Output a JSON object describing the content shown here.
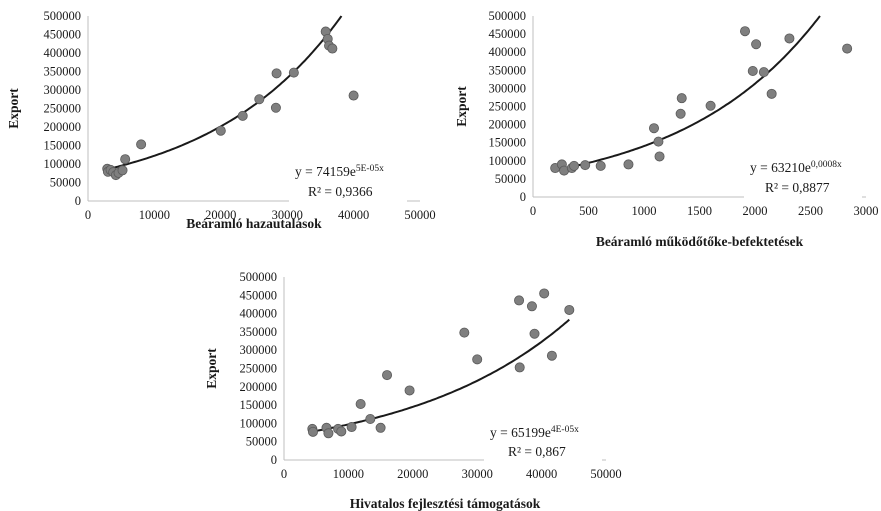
{
  "chart_data": [
    {
      "type": "scatter",
      "xlabel": "Beáramló hazautalások",
      "ylabel": "Export",
      "xlim": [
        0,
        50000
      ],
      "ylim": [
        0,
        500000
      ],
      "xticks": [
        0,
        10000,
        20000,
        30000,
        40000,
        50000
      ],
      "yticks": [
        0,
        50000,
        100000,
        150000,
        200000,
        250000,
        300000,
        350000,
        400000,
        450000,
        500000
      ],
      "x_tick_labels": [
        "0",
        "10000",
        "20000",
        "30000",
        "40000",
        "50000"
      ],
      "y_tick_labels": [
        "0",
        "50000",
        "100000",
        "150000",
        "200000",
        "250000",
        "300000",
        "350000",
        "400000",
        "450000",
        "500000"
      ],
      "points": [
        {
          "x": 2900,
          "y": 87000
        },
        {
          "x": 3000,
          "y": 79000
        },
        {
          "x": 3400,
          "y": 84000
        },
        {
          "x": 3800,
          "y": 78000
        },
        {
          "x": 4200,
          "y": 70000
        },
        {
          "x": 4600,
          "y": 76000
        },
        {
          "x": 5200,
          "y": 83000
        },
        {
          "x": 5600,
          "y": 113000
        },
        {
          "x": 8000,
          "y": 153000
        },
        {
          "x": 20000,
          "y": 190000
        },
        {
          "x": 23300,
          "y": 230000
        },
        {
          "x": 25800,
          "y": 275000
        },
        {
          "x": 28300,
          "y": 252000
        },
        {
          "x": 28400,
          "y": 345000
        },
        {
          "x": 31000,
          "y": 347000
        },
        {
          "x": 35800,
          "y": 458000
        },
        {
          "x": 36100,
          "y": 438000
        },
        {
          "x": 36300,
          "y": 420000
        },
        {
          "x": 36800,
          "y": 412000
        },
        {
          "x": 40000,
          "y": 285000
        }
      ],
      "trendline": {
        "type": "exponential",
        "a": 74159,
        "b": 5e-05,
        "x_from": 3000,
        "x_to": 40000
      },
      "equation": {
        "main": "y = 74159e",
        "exponent": "5E-05x",
        "r2": "R² = 0,9366"
      }
    },
    {
      "type": "scatter",
      "xlabel": "Beáramló működőtőke-befektetések",
      "ylabel": "Export",
      "xlim": [
        0,
        3000
      ],
      "ylim": [
        0,
        500000
      ],
      "xticks": [
        0,
        500,
        1000,
        1500,
        2000,
        2500,
        3000
      ],
      "yticks": [
        0,
        50000,
        100000,
        150000,
        200000,
        250000,
        300000,
        350000,
        400000,
        450000,
        500000
      ],
      "x_tick_labels": [
        "0",
        "500",
        "1000",
        "1500",
        "2000",
        "2500",
        "3000"
      ],
      "y_tick_labels": [
        "0",
        "50000",
        "100000",
        "150000",
        "200000",
        "250000",
        "300000",
        "350000",
        "400000",
        "450000",
        "500000"
      ],
      "points": [
        {
          "x": 200,
          "y": 80000
        },
        {
          "x": 260,
          "y": 90000
        },
        {
          "x": 280,
          "y": 73000
        },
        {
          "x": 350,
          "y": 80000
        },
        {
          "x": 370,
          "y": 86000
        },
        {
          "x": 470,
          "y": 88000
        },
        {
          "x": 610,
          "y": 86000
        },
        {
          "x": 860,
          "y": 90000
        },
        {
          "x": 1090,
          "y": 190000
        },
        {
          "x": 1130,
          "y": 153000
        },
        {
          "x": 1140,
          "y": 112000
        },
        {
          "x": 1330,
          "y": 230000
        },
        {
          "x": 1340,
          "y": 273000
        },
        {
          "x": 1600,
          "y": 252000
        },
        {
          "x": 1910,
          "y": 458000
        },
        {
          "x": 1980,
          "y": 348000
        },
        {
          "x": 2010,
          "y": 422000
        },
        {
          "x": 2080,
          "y": 345000
        },
        {
          "x": 2150,
          "y": 285000
        },
        {
          "x": 2310,
          "y": 438000
        },
        {
          "x": 2830,
          "y": 410000
        }
      ],
      "trendline": {
        "type": "exponential",
        "a": 63210,
        "b": 0.0008,
        "x_from": 200,
        "x_to": 2600
      },
      "equation": {
        "main": "y = 63210e",
        "exponent": "0,0008x",
        "r2": "R² = 0,8877"
      }
    },
    {
      "type": "scatter",
      "xlabel": "Hivatalos fejlesztési támogatások",
      "ylabel": "Export",
      "xlim": [
        0,
        50000
      ],
      "ylim": [
        0,
        500000
      ],
      "xticks": [
        0,
        10000,
        20000,
        30000,
        40000,
        50000
      ],
      "yticks": [
        0,
        50000,
        100000,
        150000,
        200000,
        250000,
        300000,
        350000,
        400000,
        450000,
        500000
      ],
      "x_tick_labels": [
        "0",
        "10000",
        "20000",
        "30000",
        "40000",
        "50000"
      ],
      "y_tick_labels": [
        "0",
        "50000",
        "100000",
        "150000",
        "200000",
        "250000",
        "300000",
        "350000",
        "400000",
        "450000",
        "500000"
      ],
      "points": [
        {
          "x": 4400,
          "y": 85000
        },
        {
          "x": 4500,
          "y": 77000
        },
        {
          "x": 6600,
          "y": 88000
        },
        {
          "x": 6900,
          "y": 73000
        },
        {
          "x": 8400,
          "y": 85000
        },
        {
          "x": 8900,
          "y": 78000
        },
        {
          "x": 10500,
          "y": 90000
        },
        {
          "x": 11900,
          "y": 153000
        },
        {
          "x": 13400,
          "y": 112000
        },
        {
          "x": 15000,
          "y": 88000
        },
        {
          "x": 16000,
          "y": 232000
        },
        {
          "x": 19500,
          "y": 190000
        },
        {
          "x": 28000,
          "y": 348000
        },
        {
          "x": 30000,
          "y": 275000
        },
        {
          "x": 36500,
          "y": 436000
        },
        {
          "x": 36600,
          "y": 253000
        },
        {
          "x": 38500,
          "y": 420000
        },
        {
          "x": 38900,
          "y": 345000
        },
        {
          "x": 40400,
          "y": 455000
        },
        {
          "x": 41600,
          "y": 285000
        },
        {
          "x": 44300,
          "y": 410000
        }
      ],
      "trendline": {
        "type": "exponential",
        "a": 65199,
        "b": 4e-05,
        "x_from": 4400,
        "x_to": 44300
      },
      "equation": {
        "main": "y = 65199e",
        "exponent": "4E-05x",
        "r2": "R² = 0,867"
      }
    }
  ],
  "colors": {
    "point_fill": "#7f7f7f",
    "point_stroke": "#5a5a5a",
    "trendline": "#1a1a1a",
    "axis": "#bfbfbf"
  }
}
